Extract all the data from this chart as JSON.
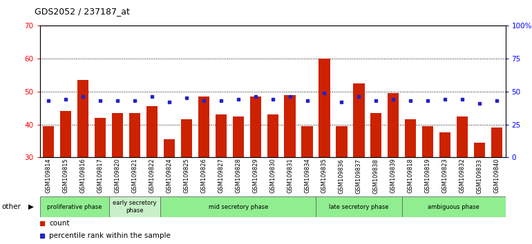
{
  "title": "GDS2052 / 237187_at",
  "samples": [
    "GSM109814",
    "GSM109815",
    "GSM109816",
    "GSM109817",
    "GSM109820",
    "GSM109821",
    "GSM109822",
    "GSM109824",
    "GSM109825",
    "GSM109826",
    "GSM109827",
    "GSM109828",
    "GSM109829",
    "GSM109830",
    "GSM109831",
    "GSM109834",
    "GSM109835",
    "GSM109836",
    "GSM109837",
    "GSM109838",
    "GSM109839",
    "GSM109818",
    "GSM109819",
    "GSM109823",
    "GSM109832",
    "GSM109833",
    "GSM109840"
  ],
  "counts": [
    39.5,
    44.0,
    53.5,
    42.0,
    43.5,
    43.5,
    45.5,
    35.5,
    41.5,
    48.5,
    43.0,
    42.5,
    48.5,
    43.0,
    49.0,
    39.5,
    60.0,
    39.5,
    52.5,
    43.5,
    49.5,
    41.5,
    39.5,
    37.5,
    42.5,
    34.5,
    39.0
  ],
  "percentiles_pct": [
    43,
    44,
    46,
    43,
    43,
    43,
    46,
    42,
    45,
    43,
    43,
    44,
    46,
    44,
    46,
    43,
    49,
    42,
    46,
    43,
    44,
    43,
    43,
    44,
    44,
    41,
    43
  ],
  "phases": [
    {
      "name": "proliferative phase",
      "start": 0,
      "end": 4,
      "color": "#90ee90"
    },
    {
      "name": "early secretory\nphase",
      "start": 4,
      "end": 7,
      "color": "#c8f0c8"
    },
    {
      "name": "mid secretory phase",
      "start": 7,
      "end": 16,
      "color": "#90ee90"
    },
    {
      "name": "late secretory phase",
      "start": 16,
      "end": 21,
      "color": "#90ee90"
    },
    {
      "name": "ambiguous phase",
      "start": 21,
      "end": 27,
      "color": "#90ee90"
    }
  ],
  "ylim_left": [
    30,
    70
  ],
  "ylim_right": [
    0,
    100
  ],
  "yticks_left": [
    30,
    40,
    50,
    60,
    70
  ],
  "yticks_right": [
    0,
    25,
    50,
    75,
    100
  ],
  "bar_color": "#cc2200",
  "dot_color": "#2222cc",
  "bg_color": "#ffffff",
  "legend_count_color": "#cc2200",
  "legend_pct_color": "#2222cc"
}
